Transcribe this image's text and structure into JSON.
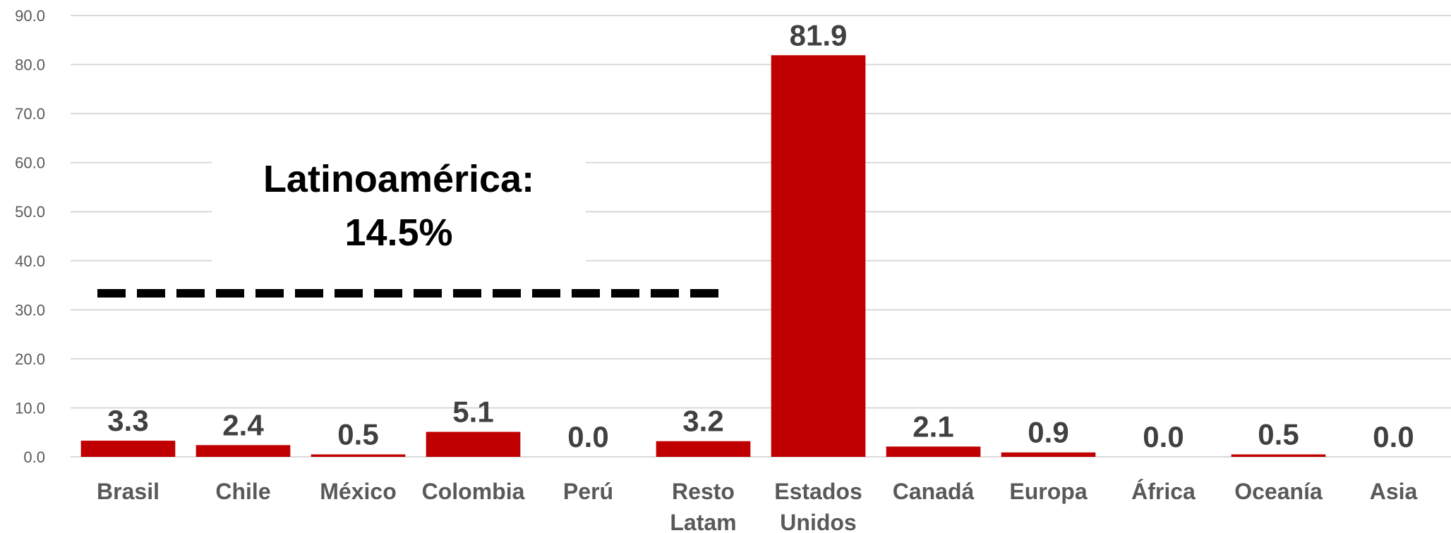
{
  "chart_data": {
    "type": "bar",
    "categories": [
      "Brasil",
      "Chile",
      "México",
      "Colombia",
      "Perú",
      "Resto Latam",
      "Estados Unidos",
      "Canadá",
      "Europa",
      "África",
      "Oceanía",
      "Asia"
    ],
    "values": [
      3.3,
      2.4,
      0.5,
      5.1,
      0.0,
      3.2,
      81.9,
      2.1,
      0.9,
      0.0,
      0.5,
      0.0
    ],
    "data_labels": [
      "3.3",
      "2.4",
      "0.5",
      "5.1",
      "0.0",
      "3.2",
      "81.9",
      "2.1",
      "0.9",
      "0.0",
      "0.5",
      "0.0"
    ],
    "ylim": [
      0,
      90
    ],
    "y_ticks": [
      "0.0",
      "10.0",
      "20.0",
      "30.0",
      "40.0",
      "50.0",
      "60.0",
      "70.0",
      "80.0",
      "90.0"
    ],
    "grid": true,
    "bar_color": "#C00000",
    "title": "",
    "xlabel": "",
    "ylabel": "",
    "annotation": {
      "lines": [
        "Latinoamérica:",
        "14.5%"
      ],
      "spans_categories": [
        "Brasil",
        "Resto Latam"
      ],
      "line_style": "dashed"
    }
  }
}
